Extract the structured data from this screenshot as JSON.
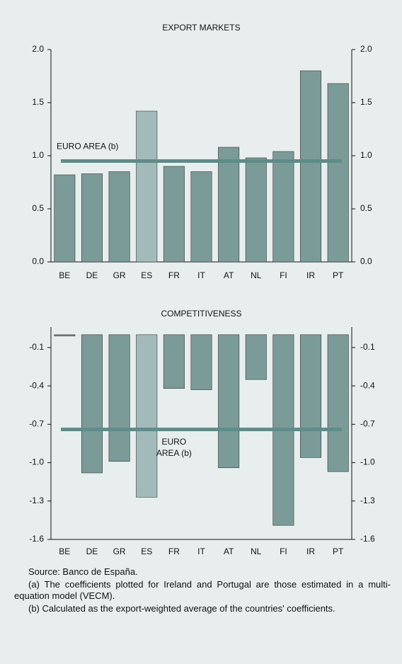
{
  "charts": [
    {
      "type": "bar",
      "title": "EXPORT MARKETS",
      "categories": [
        "BE",
        "DE",
        "GR",
        "ES",
        "FR",
        "IT",
        "AT",
        "NL",
        "FI",
        "IR",
        "PT"
      ],
      "values": [
        0.82,
        0.83,
        0.85,
        1.42,
        0.9,
        0.85,
        1.08,
        0.98,
        1.04,
        1.8,
        1.68
      ],
      "colors": [
        "#7b9b99",
        "#7b9b99",
        "#7b9b99",
        "#a2bbba",
        "#7b9b99",
        "#7b9b99",
        "#7b9b99",
        "#7b9b99",
        "#7b9b99",
        "#7b9b99",
        "#7b9b99"
      ],
      "ylim": [
        0,
        2
      ],
      "yticks": [
        {
          "value": 0,
          "label": "0.0"
        },
        0.5,
        {
          "value": 1,
          "label": "1.0"
        },
        1.5,
        {
          "value": 2,
          "label": "2.0"
        }
      ],
      "reference_line": {
        "value": 0.95,
        "label_lines": [
          "EURO AREA (b)"
        ],
        "color": "#5e8c88"
      }
    },
    {
      "type": "bar",
      "title": "COMPETITIVENESS",
      "categories": [
        "BE",
        "DE",
        "GR",
        "ES",
        "FR",
        "IT",
        "AT",
        "NL",
        "FI",
        "IR",
        "PT"
      ],
      "values": [
        -0.01,
        -1.08,
        -0.99,
        -1.27,
        -0.42,
        -0.43,
        -1.04,
        -0.35,
        -1.49,
        -0.96,
        -1.07
      ],
      "colors": [
        "#7b9b99",
        "#7b9b99",
        "#7b9b99",
        "#a2bbba",
        "#7b9b99",
        "#7b9b99",
        "#7b9b99",
        "#7b9b99",
        "#7b9b99",
        "#7b9b99",
        "#7b9b99"
      ],
      "ylim": [
        -1.6,
        0.06
      ],
      "yticks": [
        -1.6,
        -1.3,
        {
          "value": -1,
          "label": "-1.0"
        },
        -0.7,
        -0.4,
        -0.1
      ],
      "reference_line": {
        "value": -0.74,
        "label_lines": [
          "EURO",
          "AREA (b)"
        ],
        "color": "#5e8c88"
      }
    }
  ],
  "notes": [
    "Source: Banco de España.",
    "(a)  The coefficients plotted for Ireland and Portugal are those estimated in a multi-equation model (VECM).",
    "(b)  Calculated as the export-weighted average of the countries' coefficients."
  ]
}
